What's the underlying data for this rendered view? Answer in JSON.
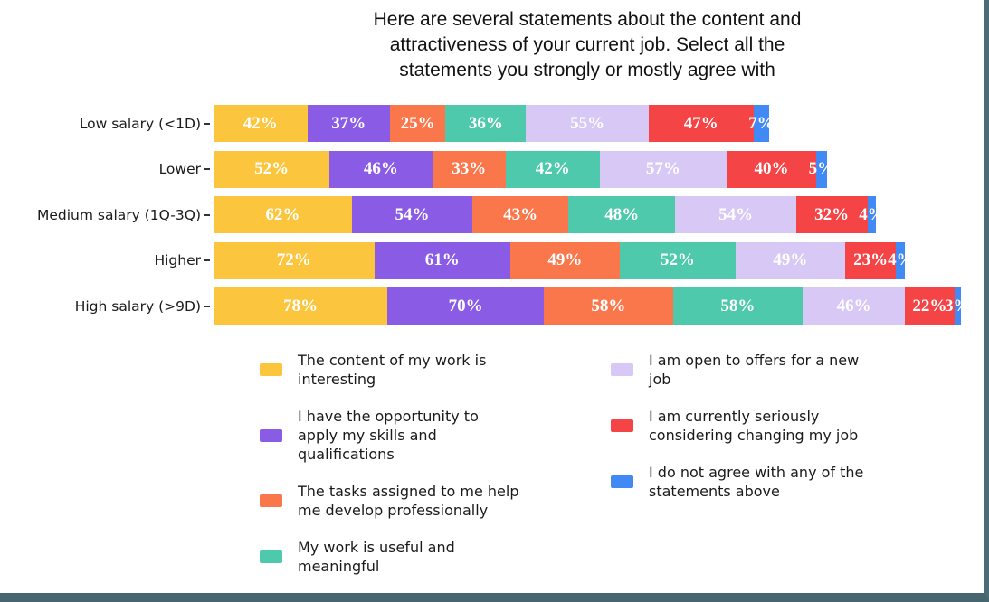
{
  "frame": {
    "border_right_color": "#4d6b75",
    "border_bottom_color": "#47656f",
    "background": "#ffffff"
  },
  "title_lines": [
    "Here are several statements about the content and",
    "attractiveness of your current job. Select all the",
    "statements you strongly or mostly agree with"
  ],
  "chart_data": {
    "type": "bar",
    "orientation": "horizontal_stacked",
    "title": "Here are several statements about the content and attractiveness of your current job. Select all the statements you strongly or mostly agree with",
    "categories": [
      "Low salary (<1D)",
      "Lower",
      "Medium salary (1Q-3Q)",
      "Higher",
      "High salary (>9D)"
    ],
    "value_suffix": "%",
    "legend_position": "bottom",
    "grid": false,
    "x_axis_visible": false,
    "bar_label_color": "#ffffff",
    "series": [
      {
        "name": "The content of my work is interesting",
        "color": "#fcc53e",
        "values": [
          42,
          52,
          62,
          72,
          78
        ]
      },
      {
        "name": "I have the opportunity to apply my skills and qualifications",
        "color": "#8a5ce6",
        "values": [
          37,
          46,
          54,
          61,
          70
        ]
      },
      {
        "name": "The tasks assigned to me help me develop professionally",
        "color": "#f9774a",
        "values": [
          25,
          33,
          43,
          49,
          58
        ]
      },
      {
        "name": "My work is useful and meaningful",
        "color": "#4fc9ac",
        "values": [
          36,
          42,
          48,
          52,
          58
        ]
      },
      {
        "name": "I am open to offers for a new job",
        "color": "#d7c8f5",
        "values": [
          55,
          57,
          54,
          49,
          46
        ]
      },
      {
        "name": "I am currently seriously considering changing my job",
        "color": "#f54445",
        "values": [
          47,
          40,
          32,
          23,
          22
        ]
      },
      {
        "name": "I do not agree with any of the statements above",
        "color": "#4189f4",
        "values": [
          7,
          5,
          4,
          4,
          3
        ]
      }
    ]
  },
  "legend": {
    "columns": [
      {
        "items": [
          {
            "color": "#fcc53e",
            "label_lines": [
              "The content of my work is",
              "interesting"
            ]
          },
          {
            "color": "#8a5ce6",
            "label_lines": [
              "I have the opportunity to",
              "apply my skills and",
              "qualifications"
            ]
          },
          {
            "color": "#f9774a",
            "label_lines": [
              "The tasks assigned to me help",
              "me develop professionally"
            ]
          },
          {
            "color": "#4fc9ac",
            "label_lines": [
              "My work is useful and",
              "meaningful"
            ]
          }
        ]
      },
      {
        "items": [
          {
            "color": "#d7c8f5",
            "label_lines": [
              "I am open to offers for a new",
              "job"
            ]
          },
          {
            "color": "#f54445",
            "label_lines": [
              "I am currently seriously",
              "considering changing my job"
            ]
          },
          {
            "color": "#4189f4",
            "label_lines": [
              "I do not agree with any of the",
              "statements above"
            ]
          }
        ]
      }
    ]
  }
}
